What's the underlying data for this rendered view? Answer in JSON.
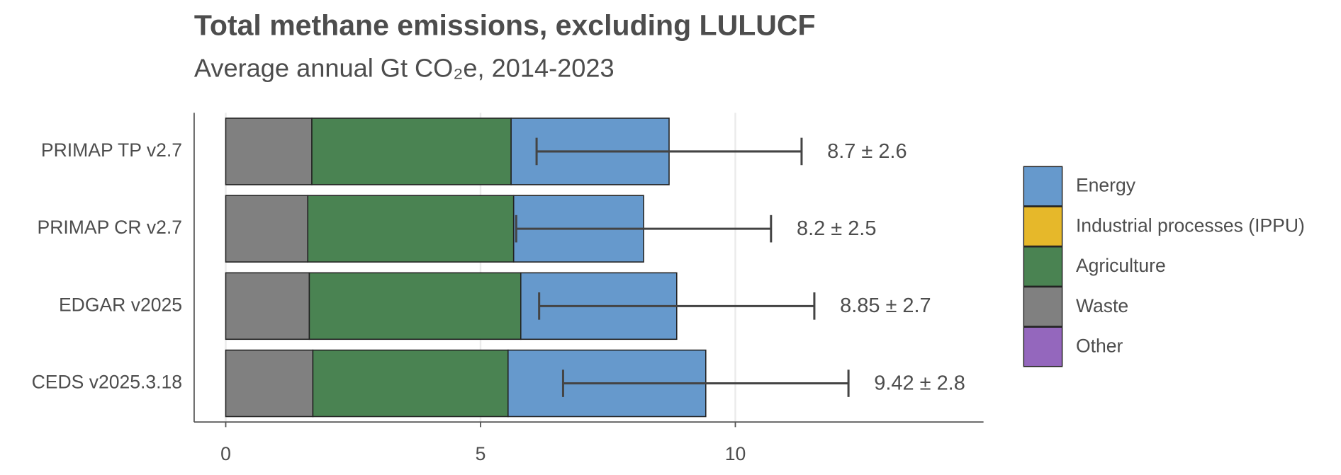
{
  "chart_data": {
    "type": "stacked-bar-horizontal",
    "title": "Total methane emissions, excluding LULUCF",
    "subtitle": "Average annual Gt CO₂e, 2014-2023",
    "categories": [
      "PRIMAP TP v2.7",
      "PRIMAP CR v2.7",
      "EDGAR v2025",
      "CEDS v2025.3.18"
    ],
    "series": [
      {
        "name": "Energy",
        "color": "#6699cc",
        "values": [
          3.1,
          2.55,
          3.06,
          3.88
        ]
      },
      {
        "name": "Industrial processes (IPPU)",
        "color": "#e6b82a",
        "values": [
          0,
          0,
          0,
          0
        ]
      },
      {
        "name": "Agriculture",
        "color": "#4a8352",
        "values": [
          3.91,
          4.04,
          4.15,
          3.83
        ]
      },
      {
        "name": "Waste",
        "color": "#808080",
        "values": [
          1.69,
          1.61,
          1.64,
          1.71
        ]
      },
      {
        "name": "Other",
        "color": "#9467bd",
        "values": [
          0,
          0,
          0,
          0
        ]
      }
    ],
    "totals": [
      8.7,
      8.2,
      8.85,
      9.42
    ],
    "errors": [
      2.6,
      2.5,
      2.7,
      2.8
    ],
    "total_labels": [
      "8.7 ± 2.6",
      "8.2 ± 2.5",
      "8.85 ± 2.7",
      "9.42 ± 2.8"
    ],
    "xlim": [
      -0.62,
      14.87
    ],
    "xticks": [
      0,
      5,
      10
    ],
    "grid": true,
    "legend": "right"
  }
}
